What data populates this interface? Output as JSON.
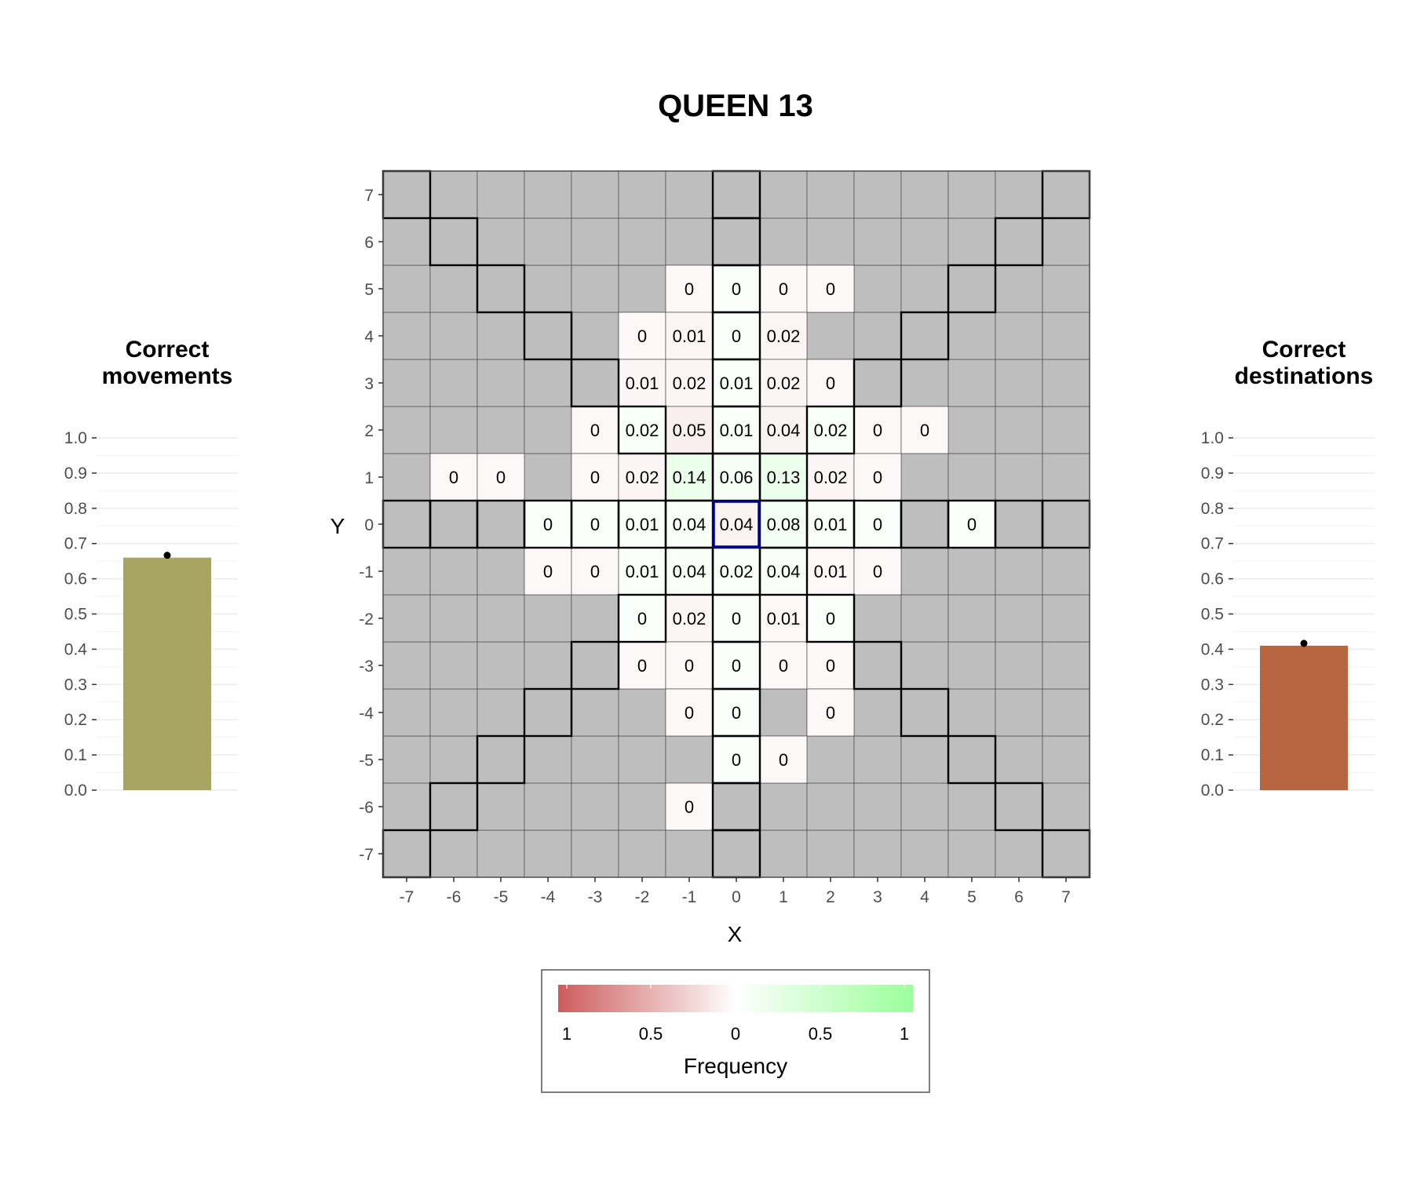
{
  "title": "QUEEN 13",
  "colors": {
    "empty_cell": "#bebebe",
    "grid_line": "#4d4d4d",
    "border_line": "#000000",
    "origin_border": "#00008b",
    "negative": "#cd5c5c",
    "neutral": "#ffffff",
    "positive": "#9aff9a",
    "movements_bar": "#a8a462",
    "destinations_bar": "#b8663f"
  },
  "chart_data": [
    {
      "type": "bar",
      "title": "Correct movements",
      "title_lines": [
        "Correct",
        "movements"
      ],
      "value": 0.66,
      "ylim": [
        0,
        1
      ],
      "yticks": [
        "0.0",
        "0.1",
        "0.2",
        "0.3",
        "0.4",
        "0.5",
        "0.6",
        "0.7",
        "0.8",
        "0.9",
        "1.0"
      ],
      "grid": true
    },
    {
      "type": "heatmap",
      "xlabel": "X",
      "ylabel": "Y",
      "x_ticks": [
        "-7",
        "-6",
        "-5",
        "-4",
        "-3",
        "-2",
        "-1",
        "0",
        "1",
        "2",
        "3",
        "4",
        "5",
        "6",
        "7"
      ],
      "y_ticks": [
        "7",
        "6",
        "5",
        "4",
        "3",
        "2",
        "1",
        "0",
        "-1",
        "-2",
        "-3",
        "-4",
        "-5",
        "-6",
        "-7"
      ],
      "xlim": [
        -7,
        7
      ],
      "ylim": [
        -7,
        7
      ],
      "origin": [
        0,
        0
      ],
      "cells": [
        {
          "x": -1,
          "y": 5,
          "label": "0",
          "value": -0.04
        },
        {
          "x": 0,
          "y": 5,
          "label": "0",
          "value": 0.04
        },
        {
          "x": 1,
          "y": 5,
          "label": "0",
          "value": -0.04
        },
        {
          "x": 2,
          "y": 5,
          "label": "0",
          "value": -0.04
        },
        {
          "x": -2,
          "y": 4,
          "label": "0",
          "value": -0.05
        },
        {
          "x": -1,
          "y": 4,
          "label": "0.01",
          "value": -0.06
        },
        {
          "x": 0,
          "y": 4,
          "label": "0",
          "value": 0.04
        },
        {
          "x": 1,
          "y": 4,
          "label": "0.02",
          "value": -0.06
        },
        {
          "x": -2,
          "y": 3,
          "label": "0.01",
          "value": -0.06
        },
        {
          "x": -1,
          "y": 3,
          "label": "0.02",
          "value": -0.06
        },
        {
          "x": 0,
          "y": 3,
          "label": "0.01",
          "value": 0.05
        },
        {
          "x": 1,
          "y": 3,
          "label": "0.02",
          "value": -0.06
        },
        {
          "x": 2,
          "y": 3,
          "label": "0",
          "value": -0.04
        },
        {
          "x": -3,
          "y": 2,
          "label": "0",
          "value": -0.04
        },
        {
          "x": -2,
          "y": 2,
          "label": "0.02",
          "value": 0.06
        },
        {
          "x": -1,
          "y": 2,
          "label": "0.05",
          "value": -0.1
        },
        {
          "x": 0,
          "y": 2,
          "label": "0.01",
          "value": 0.05
        },
        {
          "x": 1,
          "y": 2,
          "label": "0.04",
          "value": -0.08
        },
        {
          "x": 2,
          "y": 2,
          "label": "0.02",
          "value": 0.06
        },
        {
          "x": 3,
          "y": 2,
          "label": "0",
          "value": -0.04
        },
        {
          "x": 4,
          "y": 2,
          "label": "0",
          "value": -0.04
        },
        {
          "x": -6,
          "y": 1,
          "label": "0",
          "value": -0.04
        },
        {
          "x": -5,
          "y": 1,
          "label": "0",
          "value": -0.04
        },
        {
          "x": -3,
          "y": 1,
          "label": "0",
          "value": -0.04
        },
        {
          "x": -2,
          "y": 1,
          "label": "0.02",
          "value": -0.06
        },
        {
          "x": -1,
          "y": 1,
          "label": "0.14",
          "value": 0.2
        },
        {
          "x": 0,
          "y": 1,
          "label": "0.06",
          "value": 0.1
        },
        {
          "x": 1,
          "y": 1,
          "label": "0.13",
          "value": 0.19
        },
        {
          "x": 2,
          "y": 1,
          "label": "0.02",
          "value": -0.06
        },
        {
          "x": 3,
          "y": 1,
          "label": "0",
          "value": -0.04
        },
        {
          "x": -4,
          "y": 0,
          "label": "0",
          "value": 0.04
        },
        {
          "x": -3,
          "y": 0,
          "label": "0",
          "value": 0.04
        },
        {
          "x": -2,
          "y": 0,
          "label": "0.01",
          "value": 0.05
        },
        {
          "x": -1,
          "y": 0,
          "label": "0.04",
          "value": 0.08
        },
        {
          "x": 0,
          "y": 0,
          "label": "0.04",
          "value": -0.08
        },
        {
          "x": 1,
          "y": 0,
          "label": "0.08",
          "value": 0.12
        },
        {
          "x": 2,
          "y": 0,
          "label": "0.01",
          "value": 0.05
        },
        {
          "x": 3,
          "y": 0,
          "label": "0",
          "value": 0.04
        },
        {
          "x": 5,
          "y": 0,
          "label": "0",
          "value": 0.04
        },
        {
          "x": -4,
          "y": -1,
          "label": "0",
          "value": -0.04
        },
        {
          "x": -3,
          "y": -1,
          "label": "0",
          "value": -0.04
        },
        {
          "x": -2,
          "y": -1,
          "label": "0.01",
          "value": 0.05
        },
        {
          "x": -1,
          "y": -1,
          "label": "0.04",
          "value": 0.08
        },
        {
          "x": 0,
          "y": -1,
          "label": "0.02",
          "value": 0.06
        },
        {
          "x": 1,
          "y": -1,
          "label": "0.04",
          "value": 0.08
        },
        {
          "x": 2,
          "y": -1,
          "label": "0.01",
          "value": -0.05
        },
        {
          "x": 3,
          "y": -1,
          "label": "0",
          "value": -0.04
        },
        {
          "x": -2,
          "y": -2,
          "label": "0",
          "value": 0.04
        },
        {
          "x": -1,
          "y": -2,
          "label": "0.02",
          "value": -0.06
        },
        {
          "x": 0,
          "y": -2,
          "label": "0",
          "value": 0.04
        },
        {
          "x": 1,
          "y": -2,
          "label": "0.01",
          "value": -0.05
        },
        {
          "x": 2,
          "y": -2,
          "label": "0",
          "value": 0.04
        },
        {
          "x": -2,
          "y": -3,
          "label": "0",
          "value": -0.04
        },
        {
          "x": -1,
          "y": -3,
          "label": "0",
          "value": -0.04
        },
        {
          "x": 0,
          "y": -3,
          "label": "0",
          "value": 0.04
        },
        {
          "x": 1,
          "y": -3,
          "label": "0",
          "value": -0.04
        },
        {
          "x": 2,
          "y": -3,
          "label": "0",
          "value": -0.04
        },
        {
          "x": -1,
          "y": -4,
          "label": "0",
          "value": -0.04
        },
        {
          "x": 0,
          "y": -4,
          "label": "0",
          "value": 0.04
        },
        {
          "x": 2,
          "y": -4,
          "label": "0",
          "value": -0.04
        },
        {
          "x": 0,
          "y": -5,
          "label": "0",
          "value": 0.04
        },
        {
          "x": 1,
          "y": -5,
          "label": "0",
          "value": -0.04
        },
        {
          "x": -1,
          "y": -6,
          "label": "0",
          "value": -0.04
        }
      ],
      "legend": {
        "title": "Frequency",
        "labels": [
          "1",
          "0.5",
          "0",
          "0.5",
          "1"
        ],
        "placement": "bottom"
      }
    },
    {
      "type": "bar",
      "title": "Correct destinations",
      "title_lines": [
        "Correct",
        "destinations"
      ],
      "value": 0.41,
      "ylim": [
        0,
        1
      ],
      "yticks": [
        "0.0",
        "0.1",
        "0.2",
        "0.3",
        "0.4",
        "0.5",
        "0.6",
        "0.7",
        "0.8",
        "0.9",
        "1.0"
      ],
      "grid": true
    }
  ]
}
